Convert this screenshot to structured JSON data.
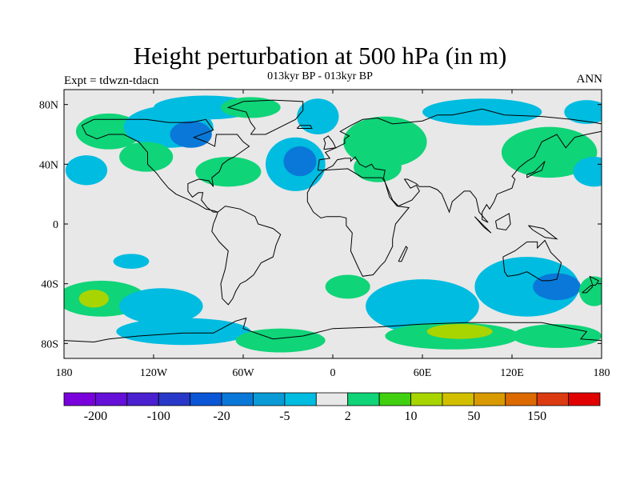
{
  "title": "Height perturbation at 500 hPa (in m)",
  "subtitle": "013kyr BP - 013kyr BP",
  "experiment": "Expt = tdwzn-tdacn",
  "season": "ANN",
  "map": {
    "projection": "cylindrical-equidistant",
    "lon_range": [
      -180,
      180
    ],
    "lat_range": [
      -90,
      90
    ],
    "background_color": "#e8e8e8",
    "coastline_color": "#000000",
    "lat_labels": [
      {
        "text": "80N",
        "lat": 80
      },
      {
        "text": "40N",
        "lat": 40
      },
      {
        "text": "0",
        "lat": 0
      },
      {
        "text": "40S",
        "lat": -40
      },
      {
        "text": "80S",
        "lat": -80
      }
    ],
    "lon_labels": [
      {
        "text": "180",
        "lon": -180
      },
      {
        "text": "120W",
        "lon": -120
      },
      {
        "text": "60W",
        "lon": -60
      },
      {
        "text": "0",
        "lon": 0
      },
      {
        "text": "60E",
        "lon": 60
      },
      {
        "text": "120E",
        "lon": 120
      },
      {
        "text": "180",
        "lon": 180
      }
    ]
  },
  "colorbar": {
    "colors": [
      "#7a00dc",
      "#6410d8",
      "#4a20d0",
      "#2838c8",
      "#0a56d6",
      "#0a78d8",
      "#0a9ad6",
      "#00bce0",
      "#e8e8e8",
      "#10d478",
      "#40d010",
      "#a8d400",
      "#d2c000",
      "#d89a00",
      "#dc6a00",
      "#dc3a10",
      "#e00000"
    ],
    "labels": [
      {
        "text": "-200",
        "boundary": 1
      },
      {
        "text": "-100",
        "boundary": 3
      },
      {
        "text": "-20",
        "boundary": 5
      },
      {
        "text": "-5",
        "boundary": 7
      },
      {
        "text": "2",
        "boundary": 9
      },
      {
        "text": "10",
        "boundary": 11
      },
      {
        "text": "50",
        "boundary": 13
      },
      {
        "text": "150",
        "boundary": 15
      }
    ]
  },
  "field_anomalies": [
    {
      "lon": -150,
      "lat": 62,
      "rlon": 22,
      "rlat": 12,
      "level": 10
    },
    {
      "lon": -110,
      "lat": 65,
      "rlon": 30,
      "rlat": 14,
      "level": -5
    },
    {
      "lon": -95,
      "lat": 60,
      "rlon": 14,
      "rlat": 9,
      "level": -20
    },
    {
      "lon": -85,
      "lat": 78,
      "rlon": 35,
      "rlat": 8,
      "level": -5
    },
    {
      "lon": -55,
      "lat": 78,
      "rlon": 20,
      "rlat": 7,
      "level": 10
    },
    {
      "lon": -125,
      "lat": 45,
      "rlon": 18,
      "rlat": 10,
      "level": 10
    },
    {
      "lon": -165,
      "lat": 36,
      "rlon": 14,
      "rlat": 10,
      "level": -5
    },
    {
      "lon": -70,
      "lat": 35,
      "rlon": 22,
      "rlat": 10,
      "level": 10
    },
    {
      "lon": -25,
      "lat": 40,
      "rlon": 20,
      "rlat": 18,
      "level": -5
    },
    {
      "lon": -22,
      "lat": 42,
      "rlon": 11,
      "rlat": 10,
      "level": -20
    },
    {
      "lon": -10,
      "lat": 72,
      "rlon": 14,
      "rlat": 12,
      "level": -5
    },
    {
      "lon": 35,
      "lat": 55,
      "rlon": 28,
      "rlat": 17,
      "level": 10
    },
    {
      "lon": 30,
      "lat": 38,
      "rlon": 16,
      "rlat": 10,
      "level": 10
    },
    {
      "lon": 100,
      "lat": 75,
      "rlon": 40,
      "rlat": 9,
      "level": -5
    },
    {
      "lon": 145,
      "lat": 48,
      "rlon": 32,
      "rlat": 17,
      "level": 10
    },
    {
      "lon": 170,
      "lat": 75,
      "rlon": 15,
      "rlat": 8,
      "level": -5
    },
    {
      "lon": 175,
      "lat": 35,
      "rlon": 14,
      "rlat": 10,
      "level": -5
    },
    {
      "lon": -135,
      "lat": -25,
      "rlon": 12,
      "rlat": 5,
      "level": -5
    },
    {
      "lon": -155,
      "lat": -50,
      "rlon": 30,
      "rlat": 12,
      "level": 10
    },
    {
      "lon": -160,
      "lat": -50,
      "rlon": 10,
      "rlat": 6,
      "level": 50
    },
    {
      "lon": -115,
      "lat": -55,
      "rlon": 28,
      "rlat": 12,
      "level": -5
    },
    {
      "lon": -100,
      "lat": -72,
      "rlon": 45,
      "rlat": 9,
      "level": -5
    },
    {
      "lon": -35,
      "lat": -78,
      "rlon": 30,
      "rlat": 8,
      "level": 10
    },
    {
      "lon": 10,
      "lat": -42,
      "rlon": 15,
      "rlat": 8,
      "level": 10
    },
    {
      "lon": 60,
      "lat": -55,
      "rlon": 38,
      "rlat": 18,
      "level": -5
    },
    {
      "lon": 80,
      "lat": -75,
      "rlon": 45,
      "rlat": 9,
      "level": 10
    },
    {
      "lon": 85,
      "lat": -72,
      "rlon": 22,
      "rlat": 5,
      "level": 50
    },
    {
      "lon": 130,
      "lat": -42,
      "rlon": 35,
      "rlat": 20,
      "level": -5
    },
    {
      "lon": 150,
      "lat": -42,
      "rlon": 16,
      "rlat": 9,
      "level": -20
    },
    {
      "lon": 150,
      "lat": -75,
      "rlon": 30,
      "rlat": 8,
      "level": 10
    },
    {
      "lon": 175,
      "lat": -45,
      "rlon": 10,
      "rlat": 10,
      "level": 10
    }
  ],
  "coastlines": [
    [
      [
        -168,
        66
      ],
      [
        -160,
        70
      ],
      [
        -140,
        70
      ],
      [
        -125,
        70
      ],
      [
        -110,
        68
      ],
      [
        -95,
        68
      ],
      [
        -85,
        70
      ],
      [
        -80,
        63
      ],
      [
        -93,
        58
      ],
      [
        -85,
        55
      ],
      [
        -79,
        52
      ],
      [
        -78,
        60
      ],
      [
        -64,
        60
      ],
      [
        -60,
        55
      ],
      [
        -56,
        52
      ],
      [
        -66,
        45
      ],
      [
        -70,
        43
      ],
      [
        -74,
        40
      ],
      [
        -76,
        35
      ],
      [
        -81,
        31
      ],
      [
        -80,
        25
      ],
      [
        -83,
        29
      ],
      [
        -90,
        30
      ],
      [
        -97,
        27
      ],
      [
        -97,
        22
      ],
      [
        -94,
        18
      ],
      [
        -90,
        21
      ],
      [
        -87,
        21
      ],
      [
        -88,
        16
      ],
      [
        -84,
        11
      ],
      [
        -80,
        8
      ],
      [
        -77,
        8
      ],
      [
        -80,
        9
      ],
      [
        -85,
        10
      ],
      [
        -90,
        13
      ],
      [
        -96,
        16
      ],
      [
        -105,
        20
      ],
      [
        -110,
        24
      ],
      [
        -115,
        30
      ],
      [
        -118,
        34
      ],
      [
        -124,
        40
      ],
      [
        -124,
        48
      ],
      [
        -130,
        55
      ],
      [
        -140,
        60
      ],
      [
        -150,
        60
      ],
      [
        -158,
        57
      ],
      [
        -165,
        60
      ],
      [
        -168,
        66
      ]
    ],
    [
      [
        -77,
        8
      ],
      [
        -72,
        12
      ],
      [
        -62,
        10
      ],
      [
        -52,
        5
      ],
      [
        -50,
        0
      ],
      [
        -40,
        -3
      ],
      [
        -35,
        -7
      ],
      [
        -38,
        -14
      ],
      [
        -40,
        -22
      ],
      [
        -48,
        -26
      ],
      [
        -53,
        -34
      ],
      [
        -58,
        -38
      ],
      [
        -62,
        -40
      ],
      [
        -65,
        -45
      ],
      [
        -67,
        -50
      ],
      [
        -70,
        -54
      ],
      [
        -74,
        -50
      ],
      [
        -75,
        -40
      ],
      [
        -72,
        -30
      ],
      [
        -70,
        -18
      ],
      [
        -76,
        -12
      ],
      [
        -81,
        -5
      ],
      [
        -80,
        0
      ],
      [
        -78,
        5
      ],
      [
        -77,
        8
      ]
    ],
    [
      [
        -55,
        60
      ],
      [
        -45,
        60
      ],
      [
        -35,
        65
      ],
      [
        -25,
        70
      ],
      [
        -20,
        76
      ],
      [
        -20,
        82
      ],
      [
        -40,
        83
      ],
      [
        -60,
        82
      ],
      [
        -70,
        78
      ],
      [
        -58,
        75
      ],
      [
        -55,
        68
      ],
      [
        -52,
        64
      ],
      [
        -55,
        60
      ]
    ],
    [
      [
        -10,
        36
      ],
      [
        -9,
        43
      ],
      [
        -2,
        44
      ],
      [
        -5,
        48
      ],
      [
        2,
        51
      ],
      [
        8,
        54
      ],
      [
        8,
        57
      ],
      [
        11,
        59
      ],
      [
        5,
        62
      ],
      [
        12,
        66
      ],
      [
        20,
        70
      ],
      [
        30,
        71
      ],
      [
        40,
        67
      ],
      [
        60,
        69
      ],
      [
        70,
        73
      ],
      [
        80,
        73
      ],
      [
        100,
        77
      ],
      [
        115,
        73
      ],
      [
        140,
        72
      ],
      [
        160,
        70
      ],
      [
        175,
        68
      ],
      [
        180,
        67
      ],
      [
        180,
        62
      ],
      [
        170,
        60
      ],
      [
        162,
        58
      ],
      [
        156,
        51
      ],
      [
        150,
        60
      ],
      [
        140,
        55
      ],
      [
        135,
        45
      ],
      [
        130,
        42
      ],
      [
        125,
        38
      ],
      [
        120,
        32
      ],
      [
        122,
        30
      ],
      [
        120,
        24
      ],
      [
        110,
        20
      ],
      [
        108,
        15
      ],
      [
        105,
        10
      ],
      [
        103,
        13
      ],
      [
        100,
        8
      ],
      [
        100,
        3
      ],
      [
        104,
        1
      ],
      [
        98,
        8
      ],
      [
        96,
        17
      ],
      [
        92,
        22
      ],
      [
        88,
        22
      ],
      [
        80,
        15
      ],
      [
        78,
        8
      ],
      [
        73,
        20
      ],
      [
        70,
        23
      ],
      [
        65,
        25
      ],
      [
        58,
        25
      ],
      [
        56,
        27
      ],
      [
        50,
        30
      ],
      [
        48,
        30
      ],
      [
        52,
        24
      ],
      [
        56,
        26
      ],
      [
        58,
        22
      ],
      [
        53,
        16
      ],
      [
        44,
        12
      ],
      [
        40,
        16
      ],
      [
        35,
        28
      ],
      [
        34,
        31
      ],
      [
        35,
        36
      ],
      [
        28,
        37
      ],
      [
        26,
        40
      ],
      [
        22,
        38
      ],
      [
        18,
        40
      ],
      [
        15,
        45
      ],
      [
        12,
        42
      ],
      [
        12,
        44
      ],
      [
        8,
        44
      ],
      [
        3,
        43
      ],
      [
        0,
        39
      ],
      [
        -6,
        36
      ],
      [
        -10,
        36
      ]
    ],
    [
      [
        -6,
        36
      ],
      [
        10,
        37
      ],
      [
        20,
        31
      ],
      [
        30,
        31
      ],
      [
        33,
        31
      ],
      [
        35,
        28
      ],
      [
        38,
        18
      ],
      [
        43,
        12
      ],
      [
        51,
        11
      ],
      [
        42,
        0
      ],
      [
        40,
        -10
      ],
      [
        40,
        -15
      ],
      [
        35,
        -25
      ],
      [
        32,
        -28
      ],
      [
        27,
        -34
      ],
      [
        20,
        -35
      ],
      [
        17,
        -29
      ],
      [
        12,
        -18
      ],
      [
        13,
        -6
      ],
      [
        9,
        -1
      ],
      [
        9,
        4
      ],
      [
        5,
        5
      ],
      [
        -4,
        5
      ],
      [
        -8,
        4
      ],
      [
        -13,
        8
      ],
      [
        -17,
        15
      ],
      [
        -17,
        21
      ],
      [
        -13,
        28
      ],
      [
        -10,
        32
      ],
      [
        -6,
        36
      ]
    ],
    [
      [
        114,
        -22
      ],
      [
        122,
        -18
      ],
      [
        130,
        -12
      ],
      [
        137,
        -12
      ],
      [
        137,
        -16
      ],
      [
        142,
        -11
      ],
      [
        146,
        -19
      ],
      [
        153,
        -26
      ],
      [
        150,
        -37
      ],
      [
        145,
        -38
      ],
      [
        140,
        -38
      ],
      [
        135,
        -35
      ],
      [
        130,
        -32
      ],
      [
        124,
        -34
      ],
      [
        117,
        -35
      ],
      [
        115,
        -32
      ],
      [
        114,
        -22
      ]
    ],
    [
      [
        -6,
        50
      ],
      [
        2,
        51
      ],
      [
        0,
        55
      ],
      [
        -3,
        59
      ],
      [
        -6,
        57
      ],
      [
        -5,
        54
      ],
      [
        -6,
        50
      ]
    ],
    [
      [
        -24,
        64
      ],
      [
        -14,
        64
      ],
      [
        -15,
        66
      ],
      [
        -22,
        66
      ],
      [
        -24,
        64
      ]
    ],
    [
      [
        130,
        31
      ],
      [
        135,
        34
      ],
      [
        140,
        36
      ],
      [
        142,
        42
      ],
      [
        140,
        40
      ],
      [
        135,
        35
      ],
      [
        130,
        33
      ],
      [
        130,
        31
      ]
    ],
    [
      [
        95,
        5
      ],
      [
        105,
        -5
      ],
      [
        106,
        -6
      ],
      [
        101,
        -2
      ],
      [
        95,
        5
      ]
    ],
    [
      [
        109,
        2
      ],
      [
        118,
        7
      ],
      [
        119,
        0
      ],
      [
        116,
        -4
      ],
      [
        110,
        -3
      ],
      [
        109,
        2
      ]
    ],
    [
      [
        131,
        -1
      ],
      [
        141,
        -3
      ],
      [
        150,
        -10
      ],
      [
        142,
        -9
      ],
      [
        134,
        -4
      ],
      [
        131,
        -1
      ]
    ],
    [
      [
        44,
        -25
      ],
      [
        49,
        -15
      ],
      [
        50,
        -16
      ],
      [
        46,
        -25
      ],
      [
        44,
        -25
      ]
    ],
    [
      [
        172,
        -35
      ],
      [
        178,
        -38
      ],
      [
        176,
        -41
      ],
      [
        174,
        -41
      ],
      [
        172,
        -35
      ]
    ],
    [
      [
        167,
        -46
      ],
      [
        173,
        -41
      ],
      [
        174,
        -42
      ],
      [
        170,
        -46
      ],
      [
        167,
        -46
      ]
    ],
    [
      [
        -180,
        -78
      ],
      [
        -160,
        -79
      ],
      [
        -150,
        -77
      ],
      [
        -130,
        -75
      ],
      [
        -100,
        -73
      ],
      [
        -80,
        -73
      ],
      [
        -65,
        -65
      ],
      [
        -58,
        -63
      ],
      [
        -60,
        -70
      ],
      [
        -40,
        -77
      ],
      [
        -20,
        -75
      ],
      [
        0,
        -70
      ],
      [
        30,
        -69
      ],
      [
        60,
        -67
      ],
      [
        90,
        -66
      ],
      [
        120,
        -66
      ],
      [
        140,
        -66
      ],
      [
        160,
        -70
      ],
      [
        170,
        -72
      ],
      [
        166,
        -77
      ],
      [
        180,
        -78
      ]
    ]
  ]
}
